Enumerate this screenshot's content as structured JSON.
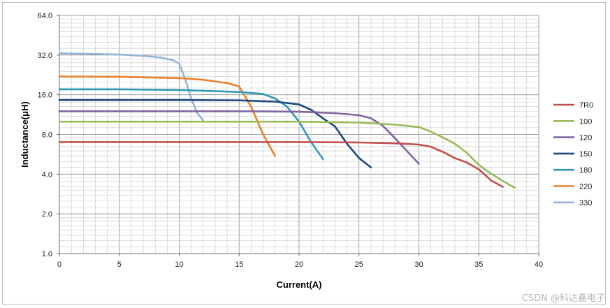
{
  "chart_data": {
    "type": "line",
    "title": "",
    "xlabel": "Current(A)",
    "ylabel": "Inductance(μH)",
    "xlim": [
      0,
      40
    ],
    "ylim": [
      1.0,
      64.0
    ],
    "yscale": "log2",
    "grid": true,
    "legend_position": "right",
    "x_ticks": [
      "0",
      "5",
      "10",
      "15",
      "20",
      "25",
      "30",
      "35",
      "40"
    ],
    "y_ticks": [
      "1.0",
      "2.0",
      "4.0",
      "8.0",
      "16.0",
      "32.0",
      "64.0"
    ],
    "series": [
      {
        "name": "7R0",
        "color": "#c0504d",
        "points": [
          [
            0,
            7.0
          ],
          [
            5,
            7.0
          ],
          [
            10,
            7.0
          ],
          [
            15,
            7.0
          ],
          [
            20,
            7.0
          ],
          [
            25,
            6.95
          ],
          [
            28,
            6.85
          ],
          [
            30,
            6.7
          ],
          [
            31,
            6.45
          ],
          [
            32,
            5.9
          ],
          [
            33,
            5.3
          ],
          [
            34,
            4.9
          ],
          [
            35,
            4.35
          ],
          [
            36,
            3.6
          ],
          [
            37,
            3.2
          ]
        ]
      },
      {
        "name": "100",
        "color": "#9bbb59",
        "points": [
          [
            0,
            10.0
          ],
          [
            5,
            10.0
          ],
          [
            10,
            10.0
          ],
          [
            15,
            10.0
          ],
          [
            20,
            10.0
          ],
          [
            25,
            9.85
          ],
          [
            28,
            9.5
          ],
          [
            30,
            9.1
          ],
          [
            31,
            8.4
          ],
          [
            32,
            7.6
          ],
          [
            33,
            6.8
          ],
          [
            34,
            5.8
          ],
          [
            35,
            4.7
          ],
          [
            36,
            4.05
          ],
          [
            37,
            3.55
          ],
          [
            38,
            3.15
          ]
        ]
      },
      {
        "name": "120",
        "color": "#8064a2",
        "points": [
          [
            0,
            12.0
          ],
          [
            5,
            12.0
          ],
          [
            10,
            12.0
          ],
          [
            15,
            12.0
          ],
          [
            20,
            11.9
          ],
          [
            23,
            11.6
          ],
          [
            25,
            11.2
          ],
          [
            26,
            10.6
          ],
          [
            27,
            9.3
          ],
          [
            28,
            7.5
          ],
          [
            29,
            6.0
          ],
          [
            30,
            4.8
          ]
        ]
      },
      {
        "name": "150",
        "color": "#1f497d",
        "points": [
          [
            0,
            14.6
          ],
          [
            5,
            14.6
          ],
          [
            10,
            14.6
          ],
          [
            15,
            14.5
          ],
          [
            18,
            14.2
          ],
          [
            20,
            13.5
          ],
          [
            21,
            12.3
          ],
          [
            22,
            10.6
          ],
          [
            23,
            9.2
          ],
          [
            24,
            6.8
          ],
          [
            25,
            5.3
          ],
          [
            26,
            4.5
          ]
        ]
      },
      {
        "name": "180",
        "color": "#2f9ab5",
        "points": [
          [
            0,
            17.6
          ],
          [
            5,
            17.6
          ],
          [
            10,
            17.4
          ],
          [
            15,
            16.8
          ],
          [
            17,
            16.2
          ],
          [
            18,
            15.0
          ],
          [
            19,
            13.0
          ],
          [
            20,
            10.0
          ],
          [
            21,
            7.0
          ],
          [
            22,
            5.2
          ]
        ]
      },
      {
        "name": "220",
        "color": "#e8822e",
        "points": [
          [
            0,
            22.0
          ],
          [
            5,
            21.9
          ],
          [
            10,
            21.4
          ],
          [
            12,
            20.8
          ],
          [
            14,
            19.6
          ],
          [
            15,
            18.5
          ],
          [
            16,
            13.0
          ],
          [
            17,
            8.0
          ],
          [
            18,
            5.5
          ]
        ]
      },
      {
        "name": "330",
        "color": "#95b3d7",
        "points": [
          [
            0,
            33.0
          ],
          [
            3,
            32.6
          ],
          [
            5,
            32.3
          ],
          [
            7,
            31.6
          ],
          [
            8.5,
            30.6
          ],
          [
            9.5,
            29.2
          ],
          [
            10,
            27.5
          ],
          [
            10.5,
            21.0
          ],
          [
            11,
            15.0
          ],
          [
            11.5,
            11.6
          ],
          [
            12,
            10.2
          ]
        ]
      }
    ]
  },
  "watermark": "CSDN @科达嘉电子"
}
